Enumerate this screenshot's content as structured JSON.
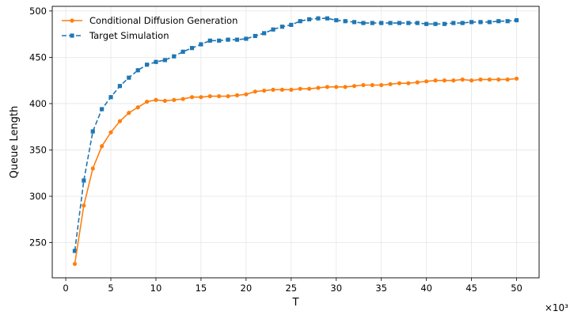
{
  "chart_data": {
    "type": "line",
    "xlabel": "T",
    "ylabel": "Queue Length",
    "x_multiplier": "×10³",
    "xlim": [
      -1.5,
      52.5
    ],
    "ylim": [
      212,
      505
    ],
    "xticks": [
      0,
      5,
      10,
      15,
      20,
      25,
      30,
      35,
      40,
      45,
      50
    ],
    "yticks": [
      250,
      300,
      350,
      400,
      450,
      500
    ],
    "grid": true,
    "legend": "top-left",
    "x": [
      1,
      2,
      3,
      4,
      5,
      6,
      7,
      8,
      9,
      10,
      11,
      12,
      13,
      14,
      15,
      16,
      17,
      18,
      19,
      20,
      21,
      22,
      23,
      24,
      25,
      26,
      27,
      28,
      29,
      30,
      31,
      32,
      33,
      34,
      35,
      36,
      37,
      38,
      39,
      40,
      41,
      42,
      43,
      44,
      45,
      46,
      47,
      48,
      49,
      50
    ],
    "series": [
      {
        "name": "Conditional Diffusion Generation",
        "color": "#ff7f0e",
        "marker": "circle",
        "linestyle": "solid",
        "values": [
          227,
          290,
          330,
          354,
          369,
          381,
          390,
          396,
          402,
          404,
          403,
          404,
          405,
          407,
          407,
          408,
          408,
          408,
          409,
          410,
          413,
          414,
          415,
          415,
          415,
          416,
          416,
          417,
          418,
          418,
          418,
          419,
          420,
          420,
          420,
          421,
          422,
          422,
          423,
          424,
          425,
          425,
          425,
          426,
          425,
          426,
          426,
          426,
          426,
          427
        ]
      },
      {
        "name": "Target Simulation",
        "color": "#1f77b4",
        "marker": "square",
        "linestyle": "dashed",
        "values": [
          241,
          317,
          370,
          394,
          407,
          419,
          428,
          436,
          442,
          445,
          447,
          451,
          456,
          460,
          464,
          468,
          468,
          469,
          469,
          470,
          473,
          476,
          480,
          483,
          485,
          489,
          491,
          492,
          492,
          490,
          489,
          488,
          487,
          487,
          487,
          487,
          487,
          487,
          487,
          486,
          486,
          486,
          487,
          487,
          488,
          488,
          488,
          489,
          489,
          490
        ]
      }
    ]
  }
}
